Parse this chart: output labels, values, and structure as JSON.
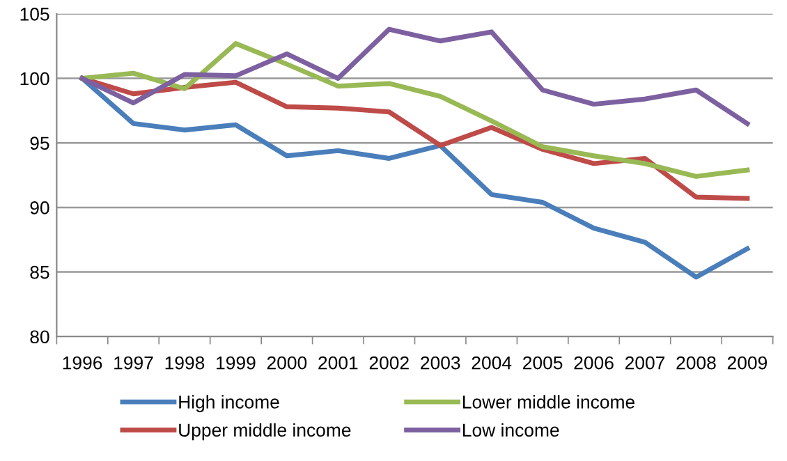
{
  "chart_data": {
    "type": "line",
    "categories": [
      "1996",
      "1997",
      "1998",
      "1999",
      "2000",
      "2001",
      "2002",
      "2003",
      "2004",
      "2005",
      "2006",
      "2007",
      "2008",
      "2009"
    ],
    "series": [
      {
        "name": "High income",
        "color": "#4a7ebb",
        "values": [
          100,
          96.5,
          96,
          96.4,
          94,
          94.4,
          93.8,
          94.8,
          91,
          90.4,
          88.4,
          87.3,
          84.6,
          86.8
        ]
      },
      {
        "name": "Upper middle income",
        "color": "#be4b48",
        "values": [
          100,
          98.8,
          99.3,
          99.7,
          97.8,
          97.7,
          97.4,
          94.8,
          96.2,
          94.5,
          93.4,
          93.8,
          90.8,
          90.7
        ]
      },
      {
        "name": "Lower middle income",
        "color": "#98b954",
        "values": [
          100,
          100.4,
          99.2,
          102.7,
          101.1,
          99.4,
          99.6,
          98.6,
          96.7,
          94.7,
          94,
          93.4,
          92.4,
          92.9
        ]
      },
      {
        "name": "Low income",
        "color": "#7d60a0",
        "values": [
          100,
          98.1,
          100.3,
          100.2,
          101.9,
          100,
          103.8,
          102.9,
          103.6,
          99.1,
          98,
          98.4,
          99.1,
          96.5
        ]
      }
    ],
    "ylim": [
      80,
      105
    ],
    "yticks": [
      80,
      85,
      90,
      95,
      100,
      105
    ],
    "grid": "y",
    "legend": "bottom",
    "marker": "none",
    "line_style": "solid"
  }
}
